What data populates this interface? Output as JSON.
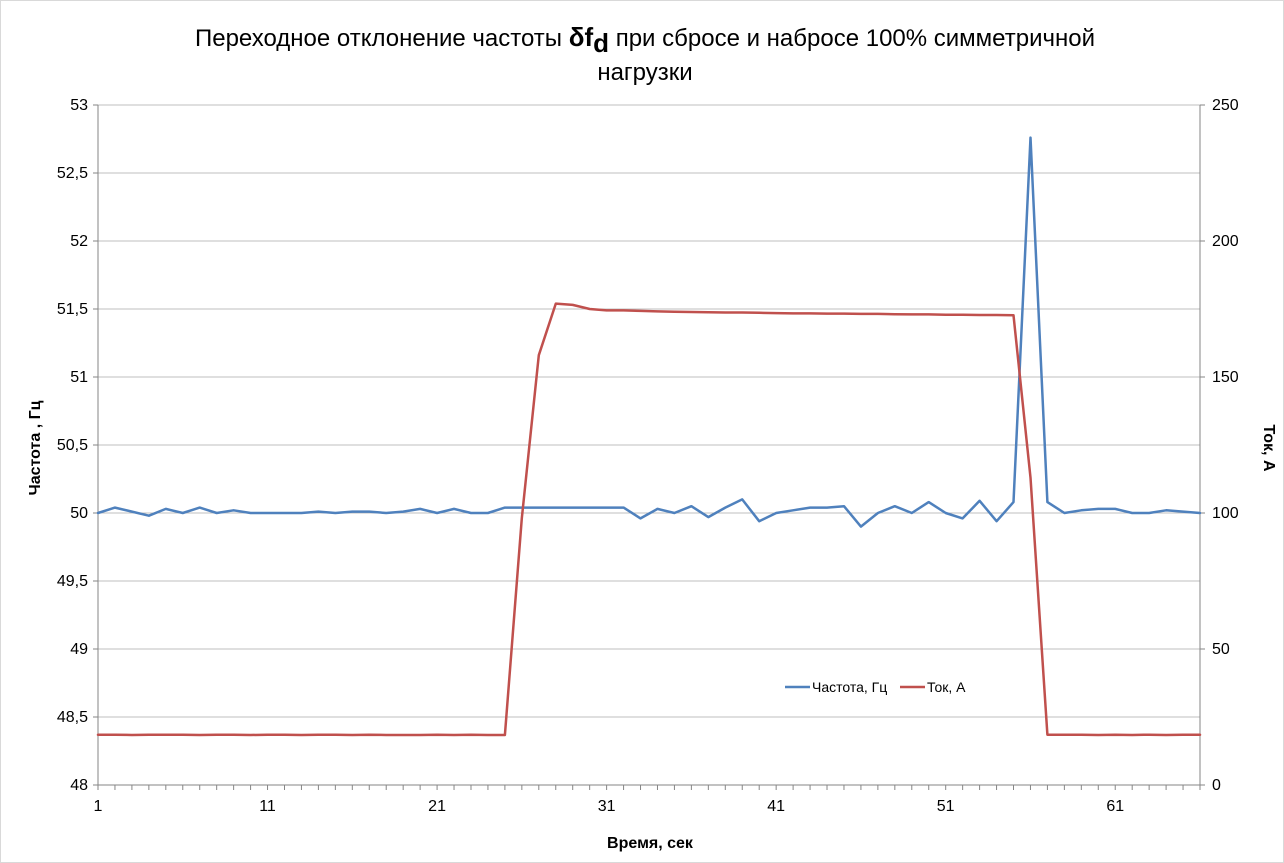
{
  "chart_data": {
    "type": "line",
    "title_parts": {
      "before": "Переходное отклонение частоты ",
      "symbol": "δf",
      "subscript": "d",
      "after_line1": " при сбросе и набросе 100% симметричной",
      "line2": "нагрузки"
    },
    "xlabel": "Время, сек",
    "ylabel_left": "Частота , Гц",
    "ylabel_right": "Ток, А",
    "x_ticks": [
      "1",
      "11",
      "21",
      "31",
      "41",
      "51",
      "61"
    ],
    "y_left_ticks": [
      "48",
      "48,5",
      "49",
      "49,5",
      "50",
      "50,5",
      "51",
      "51,5",
      "52",
      "52,5",
      "53"
    ],
    "y_right_ticks": [
      "0",
      "50",
      "100",
      "150",
      "200",
      "250"
    ],
    "xlim": [
      1,
      66
    ],
    "ylim_left": [
      48,
      53
    ],
    "ylim_right": [
      0,
      250
    ],
    "grid": "horizontal",
    "legend_position": "inside-lower-right",
    "x": [
      1,
      2,
      3,
      4,
      5,
      6,
      7,
      8,
      9,
      10,
      11,
      12,
      13,
      14,
      15,
      16,
      17,
      18,
      19,
      20,
      21,
      22,
      23,
      24,
      25,
      26,
      27,
      28,
      29,
      30,
      31,
      32,
      33,
      34,
      35,
      36,
      37,
      38,
      39,
      40,
      41,
      42,
      43,
      44,
      45,
      46,
      47,
      48,
      49,
      50,
      51,
      52,
      53,
      54,
      55,
      56,
      57,
      58,
      59,
      60,
      61,
      62,
      63,
      64,
      65,
      66
    ],
    "series": [
      {
        "name": "Частота, Гц",
        "color": "#4f81bd",
        "axis": "left",
        "values": [
          50.0,
          50.04,
          50.01,
          49.98,
          50.03,
          50.0,
          50.04,
          50.0,
          50.02,
          50.0,
          50.0,
          50.0,
          50.0,
          50.01,
          50.0,
          50.01,
          50.01,
          50.0,
          50.01,
          50.03,
          50.0,
          50.03,
          50.0,
          50.0,
          50.04,
          50.04,
          50.04,
          50.04,
          50.04,
          50.04,
          50.04,
          50.04,
          49.96,
          50.03,
          50.0,
          50.05,
          49.97,
          50.04,
          50.1,
          49.94,
          50.0,
          50.02,
          50.04,
          50.04,
          50.05,
          49.9,
          50.0,
          50.05,
          50.0,
          50.08,
          50.0,
          49.96,
          50.09,
          49.94,
          50.08,
          52.76,
          50.08,
          50.0,
          50.02,
          50.03,
          50.03,
          50.0,
          50.0,
          50.02,
          50.01,
          50.0
        ]
      },
      {
        "name": "Ток, А",
        "color": "#c0504d",
        "axis": "right",
        "values": [
          18.5,
          18.5,
          18.4,
          18.5,
          18.5,
          18.5,
          18.4,
          18.5,
          18.5,
          18.4,
          18.5,
          18.5,
          18.4,
          18.5,
          18.5,
          18.4,
          18.5,
          18.4,
          18.4,
          18.4,
          18.5,
          18.4,
          18.5,
          18.4,
          18.4,
          98,
          158,
          177,
          176.5,
          175,
          174.5,
          174.5,
          174.3,
          174.1,
          174.0,
          173.9,
          173.8,
          173.7,
          173.7,
          173.6,
          173.5,
          173.4,
          173.4,
          173.3,
          173.3,
          173.2,
          173.2,
          173.1,
          173.0,
          173.0,
          172.9,
          172.9,
          172.8,
          172.8,
          172.7,
          113,
          18.5,
          18.5,
          18.5,
          18.4,
          18.5,
          18.4,
          18.5,
          18.4,
          18.5,
          18.5
        ]
      }
    ]
  }
}
